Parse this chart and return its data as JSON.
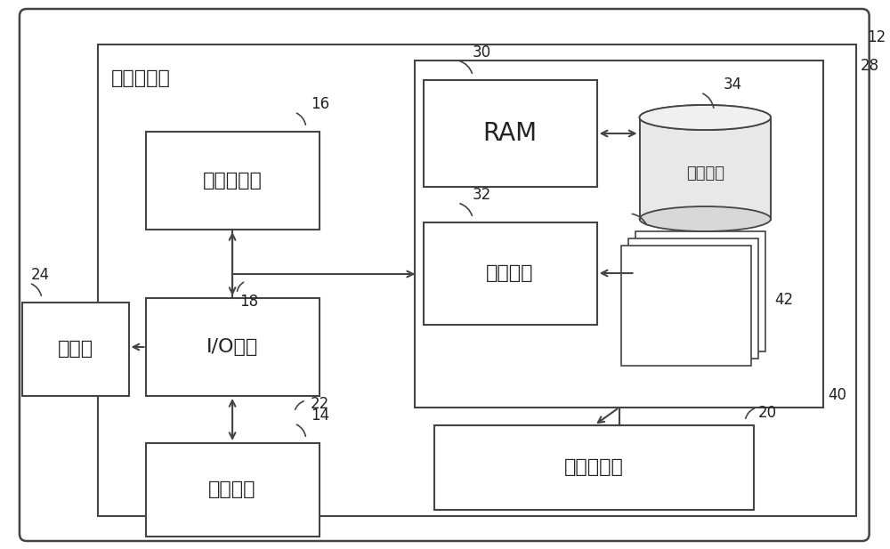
{
  "bg_color": "#ffffff",
  "ec": "#444444",
  "ec_light": "#666666",
  "label_12": "12",
  "label_28": "28",
  "label_16": "16",
  "label_18": "18",
  "label_22": "22",
  "label_24": "24",
  "label_14": "14",
  "label_20": "20",
  "label_30": "30",
  "label_32": "32",
  "label_34": "34",
  "label_40": "40",
  "label_42": "42",
  "text_jisuanji": "计算机设备",
  "text_processor": "处理器单元",
  "text_io": "I/O接口",
  "text_display": "显示器",
  "text_external": "外部设备",
  "text_network": "网络适配器",
  "text_ram": "RAM",
  "text_cache": "高速缓存",
  "text_storage": "存储系统"
}
